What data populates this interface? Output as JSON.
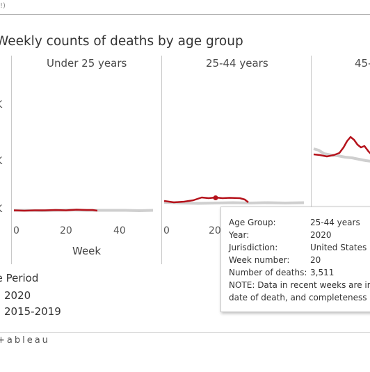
{
  "top_input": {
    "text": "!)"
  },
  "title": "Weekly counts of deaths by age group",
  "panels": [
    {
      "label": "Under 25 years"
    },
    {
      "label": "25-44 years"
    },
    {
      "label": "45-"
    }
  ],
  "y_ticks": [
    "K",
    "K",
    "K"
  ],
  "x_ticks": [
    "0",
    "20",
    "40",
    "0",
    "20"
  ],
  "x_axis_title": "Week",
  "legend": {
    "title": "me Period",
    "items": [
      {
        "label": "2020",
        "color": "#b5121b"
      },
      {
        "label": "2015-2019",
        "color": "#c8c8c8"
      }
    ]
  },
  "tooltip": {
    "rows": [
      {
        "label": "Age Group:",
        "value": "25-44 years"
      },
      {
        "label": "Year:",
        "value": "2020"
      },
      {
        "label": "Jurisdiction:",
        "value": "United States"
      },
      {
        "label": "Week number:",
        "value": "20"
      },
      {
        "label": "Number of deaths:",
        "value": "3,511"
      }
    ],
    "note_line1": "NOTE: Data in recent weeks are in",
    "note_line2": "date of death, and completeness"
  },
  "footer": {
    "logo_text": "+ableau"
  }
}
